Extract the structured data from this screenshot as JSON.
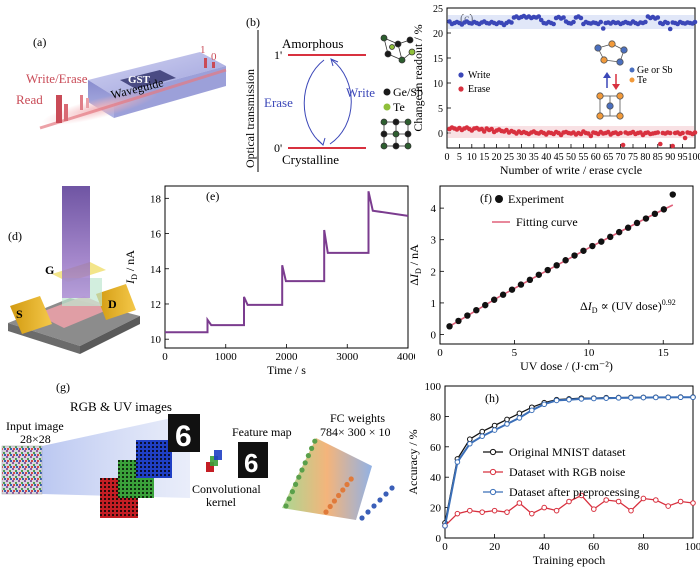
{
  "panels": {
    "a": {
      "label": "(a)",
      "write_erase": "Write/Erase",
      "read": "Read",
      "gst": "GST",
      "waveguide": "Waveguide",
      "state_1": "1",
      "state_0": "0",
      "colors": {
        "pulse": "#e06a72",
        "waveguide": "#6f74c6"
      }
    },
    "b": {
      "label": "(b)",
      "ylabel": "Optical transmission",
      "amorphous": "Amorphous",
      "crystalline": "Crystalline",
      "level_1": "1'",
      "level_0": "0'",
      "write": "Write",
      "erase": "Erase",
      "legend_gesb": "Ge/Sb",
      "legend_te": "Te"
    },
    "c": {
      "label": "(c)",
      "legend_gesb": "Ge or Sb",
      "legend_te": "Te"
    },
    "d": {
      "label": "(d)",
      "gate": "G",
      "source": "S",
      "drain": "D"
    },
    "e": {
      "label": "(e)"
    },
    "f": {
      "label": "(f)",
      "equation": "ΔI_D ∝ (UV dose)^0.92"
    },
    "g": {
      "label": "(g)",
      "rgb_uv": "RGB & UV images",
      "input_image": "Input image",
      "input_size": "28×28",
      "conv_kernel_1": "Convolutional",
      "conv_kernel_2": "kernel",
      "feature_map": "Feature map",
      "fc_weights": "FC weights",
      "fc_size": "784× 300 × 10",
      "digit": "6"
    },
    "h": {
      "label": "(h)"
    }
  },
  "chart_data": [
    {
      "id": "c",
      "type": "scatter",
      "xlabel": "Number of write / erase cycle",
      "ylabel": "Change in readout / %",
      "xlim": [
        0,
        100
      ],
      "ylim": [
        -3,
        25
      ],
      "xticks": [
        0,
        5,
        10,
        15,
        20,
        25,
        30,
        35,
        40,
        45,
        50,
        55,
        60,
        65,
        70,
        75,
        80,
        85,
        90,
        95,
        100
      ],
      "yticks": [
        0,
        5,
        10,
        15,
        20,
        25
      ],
      "legend": "center-left",
      "series": [
        {
          "name": "Write",
          "color": "#3b47b8",
          "x": [
            1,
            2,
            3,
            4,
            5,
            6,
            7,
            8,
            9,
            10,
            11,
            12,
            13,
            14,
            15,
            16,
            17,
            18,
            19,
            20,
            21,
            22,
            23,
            24,
            25,
            26,
            27,
            28,
            29,
            30,
            31,
            32,
            33,
            34,
            35,
            36,
            37,
            38,
            39,
            40,
            41,
            42,
            43,
            44,
            45,
            46,
            47,
            48,
            49,
            50,
            51,
            52,
            53,
            54,
            55,
            56,
            57,
            58,
            59,
            60,
            61,
            62,
            63,
            64,
            65,
            66,
            67,
            68,
            69,
            70,
            71,
            72,
            73,
            74,
            75,
            76,
            77,
            78,
            79,
            80,
            81,
            82,
            83,
            84,
            85,
            86,
            87,
            88,
            89,
            90,
            91,
            92,
            93,
            94,
            95,
            96,
            97,
            98,
            99,
            100
          ],
          "y": [
            22.3,
            21.8,
            22.0,
            22.2,
            22.0,
            21.7,
            22.1,
            22.3,
            22.0,
            21.9,
            22.2,
            22.0,
            21.8,
            22.1,
            22.3,
            22.0,
            21.9,
            22.2,
            22.0,
            21.8,
            22.1,
            22.0,
            21.6,
            22.0,
            22.3,
            22.1,
            23.1,
            23.3,
            23.0,
            23.2,
            23.4,
            23.1,
            23.3,
            23.0,
            23.2,
            23.1,
            23.3,
            22.6,
            22.0,
            21.9,
            22.2,
            22.0,
            21.8,
            23.0,
            23.2,
            22.9,
            23.1,
            22.3,
            22.0,
            21.9,
            22.2,
            23.1,
            23.3,
            23.0,
            21.8,
            22.2,
            22.0,
            21.9,
            22.1,
            22.0,
            21.8,
            22.2,
            20.9,
            22.0,
            22.1,
            21.9,
            22.2,
            22.0,
            22.1,
            21.8,
            22.0,
            22.2,
            22.0,
            21.9,
            22.3,
            22.0,
            21.8,
            22.1,
            22.0,
            22.2,
            23.3,
            23.0,
            23.2,
            22.9,
            23.1,
            22.0,
            21.8,
            22.2,
            22.0,
            20.8,
            22.1,
            22.0,
            21.8,
            22.2,
            22.0,
            21.9,
            22.1,
            22.0,
            21.9,
            22.2
          ]
        },
        {
          "name": "Erase",
          "color": "#d8313f",
          "x": [
            1,
            2,
            3,
            4,
            5,
            6,
            7,
            8,
            9,
            10,
            11,
            12,
            13,
            14,
            15,
            16,
            17,
            18,
            19,
            20,
            21,
            22,
            23,
            24,
            25,
            26,
            27,
            28,
            29,
            30,
            31,
            32,
            33,
            34,
            35,
            36,
            37,
            38,
            39,
            40,
            41,
            42,
            43,
            44,
            45,
            46,
            47,
            48,
            49,
            50,
            51,
            52,
            53,
            54,
            55,
            56,
            57,
            58,
            59,
            60,
            61,
            62,
            63,
            64,
            65,
            66,
            67,
            68,
            69,
            70,
            71,
            72,
            73,
            74,
            75,
            76,
            77,
            78,
            79,
            80,
            81,
            82,
            83,
            84,
            85,
            86,
            87,
            88,
            89,
            90,
            91,
            92,
            93,
            94,
            95,
            96,
            97,
            98,
            99,
            100
          ],
          "y": [
            0.8,
            1.1,
            0.9,
            0.7,
            1.0,
            0.6,
            0.9,
            1.1,
            0.8,
            0.5,
            0.9,
            1.0,
            0.7,
            0.8,
            0.3,
            0.9,
            0.6,
            0.8,
            0.2,
            0.5,
            0.7,
            0.4,
            0.3,
            0.6,
            0.1,
            0.4,
            0.2,
            -0.1,
            0.3,
            0.0,
            0.2,
            0.0,
            -0.2,
            0.1,
            0.3,
            0.0,
            -0.1,
            0.2,
            0.0,
            -0.3,
            0.1,
            0.0,
            -0.2,
            0.2,
            0.0,
            -0.4,
            0.1,
            0.2,
            0.0,
            -0.1,
            0.1,
            -0.3,
            0.0,
            -0.2,
            0.3,
            0.0,
            -0.1,
            -0.6,
            0.1,
            0.0,
            -0.2,
            0.2,
            -0.1,
            0.0,
            0.2,
            -0.3,
            0.0,
            0.1,
            -0.2,
            0.0,
            -2.4,
            0.1,
            -0.1,
            0.0,
            0.2,
            -0.2,
            0.0,
            0.1,
            -0.4,
            0.0,
            0.1,
            -0.2,
            -0.1,
            0.0,
            0.1,
            -2.2,
            0.0,
            -0.1,
            0.1,
            0.0,
            -2.6,
            0.0,
            0.1,
            -0.2,
            0.0,
            -1.0,
            0.1,
            0.0,
            -0.2,
            0.1
          ]
        }
      ]
    },
    {
      "id": "e",
      "type": "line",
      "xlabel": "Time / s",
      "ylabel": "I_D / nA",
      "xlim": [
        0,
        4000
      ],
      "ylim": [
        9.5,
        18.7
      ],
      "xticks": [
        0,
        1000,
        2000,
        3000,
        4000
      ],
      "yticks": [
        10,
        12,
        14,
        16,
        18
      ],
      "color": "#7b3c8f",
      "x": [
        0,
        700,
        700,
        760,
        1300,
        1300,
        1360,
        1930,
        1930,
        1990,
        2620,
        2620,
        2680,
        3350,
        3350,
        3420,
        4000
      ],
      "y": [
        10.4,
        10.4,
        11.1,
        10.8,
        10.8,
        12.4,
        11.95,
        11.95,
        14.2,
        13.3,
        13.3,
        16.2,
        14.9,
        14.9,
        18.4,
        17.3,
        17.0
      ]
    },
    {
      "id": "f",
      "type": "scatter",
      "xlabel": "UV dose / (J·cm⁻²)",
      "ylabel": "ΔI_D / nA",
      "xlim": [
        0,
        17
      ],
      "ylim": [
        -0.3,
        4.7
      ],
      "xticks": [
        0,
        5,
        10,
        15
      ],
      "yticks": [
        0,
        1,
        2,
        3,
        4
      ],
      "legend": "top-left",
      "series": [
        {
          "name": "Experiment",
          "color": "#111111",
          "x": [
            0.64,
            1.24,
            1.84,
            2.44,
            3.04,
            3.64,
            4.24,
            4.84,
            5.44,
            6.04,
            6.64,
            7.24,
            7.84,
            8.44,
            9.04,
            9.64,
            10.24,
            10.84,
            11.44,
            12.04,
            12.64,
            13.24,
            13.84,
            14.44,
            15.04,
            15.64
          ],
          "y": [
            0.26,
            0.43,
            0.6,
            0.77,
            0.93,
            1.1,
            1.26,
            1.42,
            1.58,
            1.73,
            1.89,
            2.04,
            2.19,
            2.35,
            2.5,
            2.65,
            2.8,
            2.94,
            3.09,
            3.24,
            3.38,
            3.53,
            3.67,
            3.82,
            3.96,
            4.43
          ]
        },
        {
          "name": "Fitting curve",
          "color": "#e0607a",
          "x": [
            0.64,
            2,
            4,
            6,
            8,
            10,
            12,
            14,
            15.64
          ],
          "y": [
            0.26,
            0.64,
            1.2,
            1.72,
            2.23,
            2.74,
            3.23,
            3.72,
            4.1
          ]
        }
      ]
    },
    {
      "id": "h",
      "type": "line",
      "xlabel": "Training epoch",
      "ylabel": "Accuracy / %",
      "xlim": [
        0,
        100
      ],
      "ylim": [
        0,
        100
      ],
      "xticks": [
        0,
        20,
        40,
        60,
        80,
        100
      ],
      "yticks": [
        0,
        20,
        40,
        60,
        80,
        100
      ],
      "legend": "center-right",
      "series": [
        {
          "name": "Original MNIST dataset",
          "color": "#111111",
          "x": [
            0,
            5,
            10,
            15,
            20,
            25,
            30,
            35,
            40,
            45,
            50,
            55,
            60,
            65,
            70,
            75,
            80,
            85,
            90,
            95,
            100
          ],
          "y": [
            10,
            52,
            65,
            70,
            74,
            78,
            82,
            86,
            89,
            91,
            91.5,
            92,
            92,
            92.3,
            92.4,
            92.5,
            92.5,
            92.6,
            92.6,
            92.7,
            92.7
          ]
        },
        {
          "name": "Dataset with RGB noise",
          "color": "#d8313f",
          "x": [
            0,
            5,
            10,
            15,
            20,
            25,
            30,
            35,
            40,
            45,
            50,
            55,
            60,
            65,
            70,
            75,
            80,
            85,
            90,
            95,
            100
          ],
          "y": [
            8,
            16,
            18,
            17,
            18,
            17,
            23,
            16,
            20,
            18,
            24,
            28,
            19,
            25,
            24,
            18,
            26,
            25,
            21,
            24,
            23
          ]
        },
        {
          "name": "Dataset after preprocessing",
          "color": "#3b6fb8",
          "x": [
            0,
            5,
            10,
            15,
            20,
            25,
            30,
            35,
            40,
            45,
            50,
            55,
            60,
            65,
            70,
            75,
            80,
            85,
            90,
            95,
            100
          ],
          "y": [
            8,
            50,
            62,
            67,
            71,
            75,
            79,
            84,
            88,
            90.5,
            91,
            91.5,
            91.8,
            92,
            92.2,
            92.3,
            92.4,
            92.5,
            92.5,
            92.6,
            92.6
          ]
        }
      ]
    }
  ]
}
